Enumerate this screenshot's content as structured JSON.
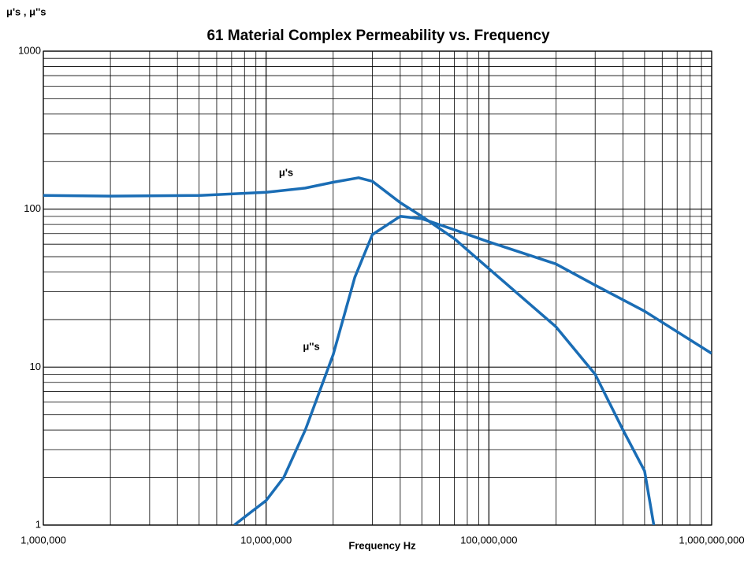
{
  "chart_data": {
    "type": "line",
    "title": "61 Material Complex Permeability vs. Frequency",
    "y_label": "μ's , μ''s",
    "x_label": "Frequency Hz",
    "log_x": true,
    "log_y": true,
    "grid": true,
    "minor_grid": true,
    "xlim": [
      1000000,
      1000000000
    ],
    "xticks": [
      {
        "value": 1000000,
        "label": "1,000,000"
      },
      {
        "value": 10000000,
        "label": "10,000,000"
      },
      {
        "value": 100000000,
        "label": "100,000,000"
      },
      {
        "value": 1000000000,
        "label": "1,000,000,000"
      }
    ],
    "ylim": [
      1,
      1000
    ],
    "yticks": [
      1,
      10,
      100,
      1000
    ],
    "series": [
      {
        "name": "μ's",
        "color": "#1a6db5",
        "x": [
          1000000,
          2000000,
          5000000,
          10000000,
          15000000,
          20000000,
          26000000,
          30000000,
          40000000,
          50000000,
          70000000,
          100000000,
          200000000,
          300000000,
          400000000,
          500000000,
          550000000
        ],
        "values": [
          122,
          121,
          122,
          128,
          136,
          148,
          158,
          150,
          110,
          90,
          65,
          42,
          18,
          9,
          4,
          2.2,
          1
        ]
      },
      {
        "name": "μ''s",
        "color": "#1a6db5",
        "x": [
          7200000,
          8500000,
          10000000,
          12000000,
          15000000,
          20000000,
          25000000,
          30000000,
          40000000,
          50000000,
          70000000,
          100000000,
          200000000,
          300000000,
          500000000,
          1000000000
        ],
        "values": [
          1,
          1.2,
          1.43,
          2,
          4,
          12,
          37,
          69,
          90,
          87,
          74,
          62,
          45,
          33,
          22.6,
          12.2
        ]
      }
    ]
  }
}
